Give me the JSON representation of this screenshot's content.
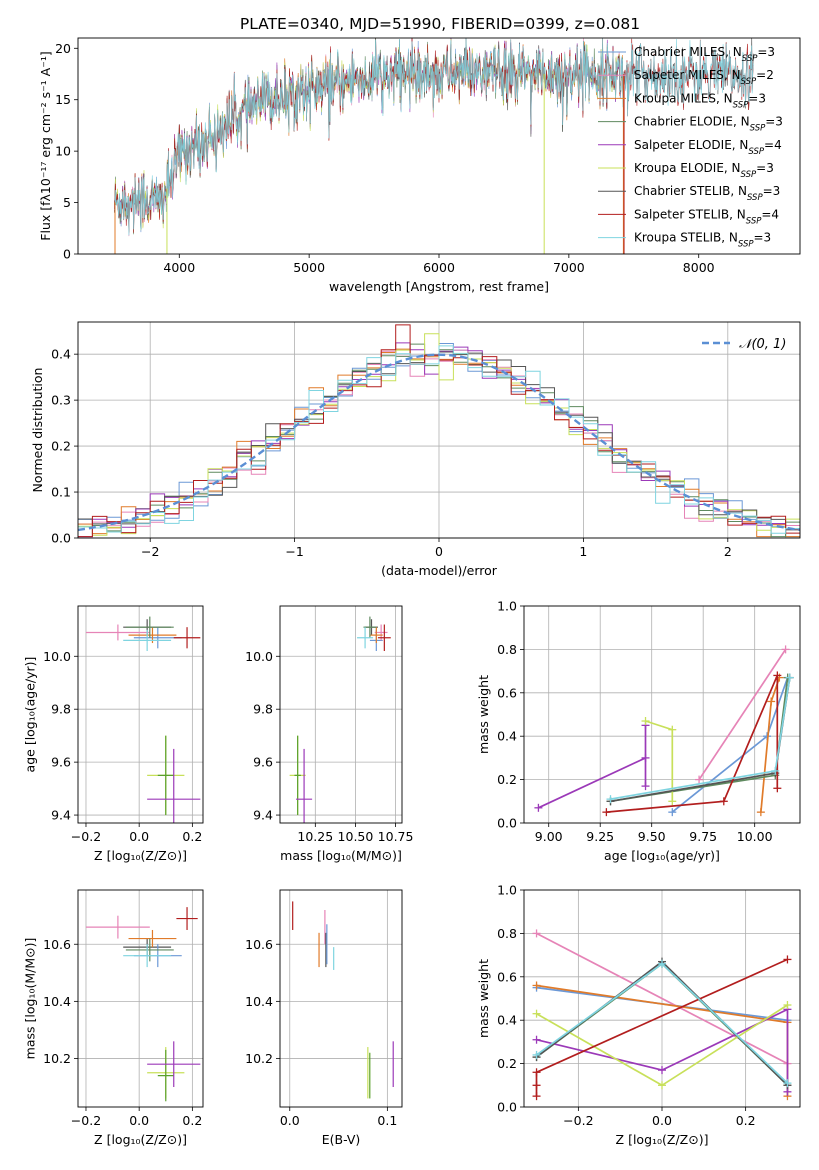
{
  "figure_title": "PLATE=0340, MJD=51990, FIBERID=0399, z=0.081",
  "chart_data": [
    {
      "type": "line",
      "id": "spectrum",
      "title": "PLATE=0340, MJD=51990, FIBERID=0399, z=0.081",
      "xlabel": "wavelength [Angstrom, rest frame]",
      "ylabel": "Flux [fλ10⁻¹⁷ erg cm⁻² s⁻¹ A⁻¹]",
      "xlim": [
        3220,
        8780
      ],
      "ylim": [
        0,
        21
      ],
      "xticks": [
        "4000",
        "5000",
        "6000",
        "7000",
        "8000"
      ],
      "yticks": [
        "0",
        "5",
        "10",
        "15",
        "20"
      ],
      "grid": false,
      "legend_loc": "upper-right",
      "series": [
        {
          "name": "Chabrier MILES, N_SSP=3",
          "color": "#6b98d6"
        },
        {
          "name": "Salpeter MILES, N_SSP=2",
          "color": "#e684b7"
        },
        {
          "name": "Kroupa MILES, N_SSP=3",
          "color": "#e07b2a"
        },
        {
          "name": "Chabrier ELODIE, N_SSP=3",
          "color": "#5f8a5f"
        },
        {
          "name": "Salpeter ELODIE, N_SSP=4",
          "color": "#9b39b8"
        },
        {
          "name": "Kroupa ELODIE, N_SSP=3",
          "color": "#c8e05a"
        },
        {
          "name": "Chabrier STELIB, N_SSP=3",
          "color": "#555555"
        },
        {
          "name": "Salpeter STELIB, N_SSP=4",
          "color": "#b21e1e"
        },
        {
          "name": "Kroupa STELIB, N_SSP=3",
          "color": "#7fd4e0"
        }
      ],
      "continuum": {
        "wavelength": [
          3500,
          3700,
          3850,
          3950,
          4000,
          4200,
          4400,
          4600,
          4800,
          5000,
          5200,
          5400,
          5600,
          5800,
          6000,
          6200,
          6500,
          6700,
          7000,
          7200,
          7400
        ],
        "flux": [
          5,
          5.5,
          5,
          7.5,
          10,
          11,
          13,
          14.5,
          15.5,
          16,
          16.5,
          17,
          17.3,
          17.8,
          17.5,
          17.8,
          17.5,
          17.5,
          17.5,
          17.8,
          17.5
        ]
      }
    },
    {
      "type": "bar",
      "id": "residual_histogram",
      "xlabel": "(data-model)/error",
      "ylabel": "Normed distribution",
      "xlim": [
        -2.5,
        2.5
      ],
      "ylim": [
        0,
        0.47
      ],
      "xticks": [
        "−2",
        "−1",
        "0",
        "1",
        "2"
      ],
      "yticks": [
        "0.0",
        "0.1",
        "0.2",
        "0.3",
        "0.4"
      ],
      "grid": true,
      "legend": [
        "𝒩(0, 1)"
      ],
      "legend_loc": "upper-right",
      "reference_curve": {
        "name": "N(0,1)",
        "mean": 0,
        "sigma": 1,
        "color": "#5b8fd4"
      },
      "bin_width": 0.1
    },
    {
      "type": "scatter",
      "id": "age_vs_Z",
      "xlabel": "Z [log₁₀(Z/Z⊙)]",
      "ylabel": "age  [log₁₀(age/yr)]",
      "xlim": [
        -0.23,
        0.24
      ],
      "ylim": [
        9.37,
        10.19
      ],
      "xticks": [
        "−0.2",
        "0.0",
        "0.2"
      ],
      "yticks": [
        "9.4",
        "9.6",
        "9.8",
        "10.0"
      ],
      "grid": true,
      "points": [
        {
          "x": 0.03,
          "y": 10.11,
          "xerr": 0.09,
          "yerr": 0.03,
          "color": "#555555"
        },
        {
          "x": 0.07,
          "y": 10.07,
          "xerr": 0.09,
          "yerr": 0.04,
          "color": "#6b98d6"
        },
        {
          "x": -0.08,
          "y": 10.09,
          "xerr": 0.12,
          "yerr": 0.03,
          "color": "#e684b7"
        },
        {
          "x": 0.05,
          "y": 10.08,
          "xerr": 0.09,
          "yerr": 0.03,
          "color": "#e07b2a"
        },
        {
          "x": 0.04,
          "y": 10.11,
          "xerr": 0.09,
          "yerr": 0.04,
          "color": "#5f8a5f"
        },
        {
          "x": 0.18,
          "y": 10.07,
          "xerr": 0.05,
          "yerr": 0.04,
          "color": "#b21e1e"
        },
        {
          "x": 0.03,
          "y": 10.06,
          "xerr": 0.09,
          "yerr": 0.04,
          "color": "#7fd4e0"
        },
        {
          "x": 0.1,
          "y": 9.55,
          "xerr": 0.07,
          "yerr": 0.15,
          "color": "#c8e05a"
        },
        {
          "x": 0.1,
          "y": 9.55,
          "xerr": 0.03,
          "yerr": 0.15,
          "color": "#5aa02c"
        },
        {
          "x": 0.13,
          "y": 9.46,
          "xerr": 0.1,
          "yerr": 0.19,
          "color": "#9b39b8"
        }
      ]
    },
    {
      "type": "scatter",
      "id": "age_vs_mass",
      "xlabel": "mass [log₁₀(M/M⊙)]",
      "xlim": [
        10.03,
        10.79
      ],
      "ylim": [
        9.37,
        10.19
      ],
      "xticks": [
        "10.25",
        "10.50",
        "10.75"
      ],
      "yticks": [
        "9.4",
        "9.6",
        "9.8",
        "10.0"
      ],
      "grid": true,
      "points": [
        {
          "x": 10.6,
          "y": 10.11,
          "xerr": 0.04,
          "yerr": 0.03,
          "color": "#555555"
        },
        {
          "x": 10.63,
          "y": 10.06,
          "xerr": 0.04,
          "yerr": 0.04,
          "color": "#6b98d6"
        },
        {
          "x": 10.66,
          "y": 10.09,
          "xerr": 0.04,
          "yerr": 0.03,
          "color": "#e684b7"
        },
        {
          "x": 10.63,
          "y": 10.08,
          "xerr": 0.04,
          "yerr": 0.03,
          "color": "#e07b2a"
        },
        {
          "x": 10.59,
          "y": 10.11,
          "xerr": 0.04,
          "yerr": 0.04,
          "color": "#5f8a5f"
        },
        {
          "x": 10.68,
          "y": 10.07,
          "xerr": 0.04,
          "yerr": 0.05,
          "color": "#b21e1e"
        },
        {
          "x": 10.56,
          "y": 10.07,
          "xerr": 0.05,
          "yerr": 0.04,
          "color": "#7fd4e0"
        },
        {
          "x": 10.14,
          "y": 9.55,
          "xerr": 0.05,
          "yerr": 0.15,
          "color": "#c8e05a"
        },
        {
          "x": 10.14,
          "y": 9.55,
          "xerr": 0.02,
          "yerr": 0.15,
          "color": "#5aa02c"
        },
        {
          "x": 10.18,
          "y": 9.46,
          "xerr": 0.05,
          "yerr": 0.19,
          "color": "#9b39b8"
        }
      ]
    },
    {
      "type": "line",
      "id": "weight_vs_age",
      "xlabel": "age  [log₁₀(age/yr)]",
      "ylabel": "mass weight",
      "xlim": [
        8.88,
        10.22
      ],
      "ylim": [
        0,
        1
      ],
      "xticks": [
        "9.00",
        "9.25",
        "9.50",
        "9.75",
        "10.00"
      ],
      "yticks": [
        "0.0",
        "0.2",
        "0.4",
        "0.6",
        "0.8",
        "1.0"
      ],
      "grid": true,
      "series": [
        {
          "color": "#6b98d6",
          "x": [
            9.6,
            10.06,
            10.16
          ],
          "y": [
            0.05,
            0.4,
            0.67
          ]
        },
        {
          "color": "#e684b7",
          "x": [
            9.73,
            10.15
          ],
          "y": [
            0.2,
            0.8
          ]
        },
        {
          "color": "#e07b2a",
          "x": [
            10.03,
            10.08,
            10.12
          ],
          "y": [
            0.05,
            0.56,
            0.67
          ]
        },
        {
          "color": "#5f8a5f",
          "x": [
            9.3,
            10.1,
            10.16
          ],
          "y": [
            0.1,
            0.22,
            0.67
          ]
        },
        {
          "color": "#9b39b8",
          "x": [
            8.95,
            9.47,
            9.47,
            9.47
          ],
          "y": [
            0.07,
            0.3,
            0.45,
            0.17
          ]
        },
        {
          "color": "#c8e05a",
          "x": [
            9.47,
            9.6,
            9.6
          ],
          "y": [
            0.47,
            0.43,
            0.1
          ]
        },
        {
          "color": "#555555",
          "x": [
            9.3,
            10.1,
            10.17
          ],
          "y": [
            0.1,
            0.23,
            0.67
          ]
        },
        {
          "color": "#b21e1e",
          "x": [
            9.28,
            9.85,
            10.11,
            10.11
          ],
          "y": [
            0.05,
            0.1,
            0.68,
            0.16
          ]
        },
        {
          "color": "#7fd4e0",
          "x": [
            9.3,
            10.1,
            10.17
          ],
          "y": [
            0.11,
            0.24,
            0.67
          ]
        }
      ]
    },
    {
      "type": "scatter",
      "id": "mass_vs_Z",
      "xlabel": "Z [log₁₀(Z/Z⊙)]",
      "ylabel": "mass [log₁₀(M/M⊙)]",
      "xlim": [
        -0.23,
        0.24
      ],
      "ylim": [
        10.03,
        10.79
      ],
      "xticks": [
        "−0.2",
        "0.0",
        "0.2"
      ],
      "yticks": [
        "10.2",
        "10.4",
        "10.6"
      ],
      "grid": true,
      "points": [
        {
          "x": 0.03,
          "y": 10.59,
          "xerr": 0.09,
          "yerr": 0.03,
          "color": "#555555"
        },
        {
          "x": 0.07,
          "y": 10.56,
          "xerr": 0.09,
          "yerr": 0.04,
          "color": "#6b98d6"
        },
        {
          "x": -0.08,
          "y": 10.66,
          "xerr": 0.12,
          "yerr": 0.04,
          "color": "#e684b7"
        },
        {
          "x": 0.05,
          "y": 10.62,
          "xerr": 0.09,
          "yerr": 0.03,
          "color": "#e07b2a"
        },
        {
          "x": 0.04,
          "y": 10.58,
          "xerr": 0.09,
          "yerr": 0.04,
          "color": "#5f8a5f"
        },
        {
          "x": 0.18,
          "y": 10.69,
          "xerr": 0.04,
          "yerr": 0.04,
          "color": "#b21e1e"
        },
        {
          "x": 0.03,
          "y": 10.56,
          "xerr": 0.09,
          "yerr": 0.04,
          "color": "#7fd4e0"
        },
        {
          "x": 0.1,
          "y": 10.15,
          "xerr": 0.07,
          "yerr": 0.09,
          "color": "#c8e05a"
        },
        {
          "x": 0.1,
          "y": 10.14,
          "xerr": 0.03,
          "yerr": 0.09,
          "color": "#5aa02c"
        },
        {
          "x": 0.13,
          "y": 10.18,
          "xerr": 0.1,
          "yerr": 0.08,
          "color": "#9b39b8"
        }
      ]
    },
    {
      "type": "scatter",
      "id": "mass_vs_EBV",
      "xlabel": "E(B-V)",
      "xlim": [
        -0.01,
        0.115
      ],
      "ylim": [
        10.03,
        10.79
      ],
      "xticks": [
        "0.0",
        "0.1"
      ],
      "yticks": [
        "10.2",
        "10.4",
        "10.6"
      ],
      "grid": true,
      "points": [
        {
          "x": 0.003,
          "y": 10.7,
          "yerr": 0.05,
          "color": "#b21e1e"
        },
        {
          "x": 0.03,
          "y": 10.58,
          "yerr": 0.06,
          "color": "#e07b2a"
        },
        {
          "x": 0.036,
          "y": 10.66,
          "yerr": 0.06,
          "color": "#e684b7"
        },
        {
          "x": 0.037,
          "y": 10.58,
          "yerr": 0.06,
          "color": "#555555"
        },
        {
          "x": 0.038,
          "y": 10.6,
          "yerr": 0.07,
          "color": "#6b98d6"
        },
        {
          "x": 0.045,
          "y": 10.55,
          "yerr": 0.04,
          "color": "#7fd4e0"
        },
        {
          "x": 0.08,
          "y": 10.15,
          "yerr": 0.09,
          "color": "#c8e05a"
        },
        {
          "x": 0.082,
          "y": 10.14,
          "yerr": 0.08,
          "color": "#5aa02c"
        },
        {
          "x": 0.106,
          "y": 10.18,
          "yerr": 0.08,
          "color": "#9b39b8"
        }
      ]
    },
    {
      "type": "line",
      "id": "weight_vs_Z",
      "xlabel": "Z [log₁₀(Z/Z⊙)]",
      "ylabel": "mass weight",
      "xlim": [
        -0.33,
        0.33
      ],
      "ylim": [
        0,
        1
      ],
      "xticks": [
        "−0.2",
        "0.0",
        "0.2"
      ],
      "yticks": [
        "0.0",
        "0.2",
        "0.4",
        "0.6",
        "0.8",
        "1.0"
      ],
      "grid": true,
      "series": [
        {
          "color": "#6b98d6",
          "x": [
            -0.3,
            0.3
          ],
          "y": [
            0.55,
            0.4
          ]
        },
        {
          "color": "#e684b7",
          "x": [
            -0.3,
            0.3
          ],
          "y": [
            0.8,
            0.2
          ]
        },
        {
          "color": "#e07b2a",
          "x": [
            -0.3,
            0.3,
            0.3
          ],
          "y": [
            0.56,
            0.39,
            0.05
          ]
        },
        {
          "color": "#5f8a5f",
          "x": [
            -0.3,
            0.0,
            0.3
          ],
          "y": [
            0.23,
            0.66,
            0.1
          ]
        },
        {
          "color": "#9b39b8",
          "x": [
            -0.3,
            0.0,
            0.3,
            0.3
          ],
          "y": [
            0.31,
            0.17,
            0.45,
            0.07
          ]
        },
        {
          "color": "#c8e05a",
          "x": [
            -0.3,
            0.0,
            0.3
          ],
          "y": [
            0.43,
            0.1,
            0.47
          ]
        },
        {
          "color": "#555555",
          "x": [
            -0.3,
            0.0,
            0.3
          ],
          "y": [
            0.23,
            0.67,
            0.1
          ]
        },
        {
          "color": "#b21e1e",
          "x": [
            -0.3,
            -0.3,
            -0.3,
            0.3
          ],
          "y": [
            0.05,
            0.1,
            0.16,
            0.68
          ]
        },
        {
          "color": "#7fd4e0",
          "x": [
            -0.3,
            0.0,
            0.3
          ],
          "y": [
            0.24,
            0.66,
            0.11
          ]
        }
      ]
    }
  ]
}
